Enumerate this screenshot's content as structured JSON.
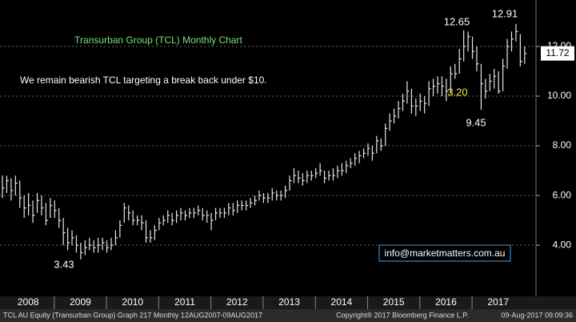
{
  "chart_data": {
    "type": "ohlc",
    "title": "Transurban Group (TCL) Monthly Chart",
    "subtitle": "We remain bearish TCL targeting a break back under $10.",
    "annotations": [
      "12.65",
      "12.91",
      "9.45",
      "3.43",
      "3.20"
    ],
    "contact": "info@marketmatters.com.au",
    "footer": [
      "TCL AU Equity (Transurban Group) Graph 217  Monthly 12AUG2007-09AUG2017",
      "Copyright® 2017 Bloomberg Finance L.P.",
      "09-Aug-2017 09:09:36"
    ],
    "categories": [
      null,
      null,
      null,
      null,
      null,
      "2008",
      null,
      null,
      null,
      null,
      null,
      null,
      null,
      null,
      null,
      null,
      null,
      "2009",
      null,
      null,
      null,
      null,
      null,
      null,
      null,
      null,
      null,
      null,
      null,
      "2010",
      null,
      null,
      null,
      null,
      null,
      null,
      null,
      null,
      null,
      null,
      null,
      "2011",
      null,
      null,
      null,
      null,
      null,
      null,
      null,
      null,
      null,
      null,
      null,
      "2012",
      null,
      null,
      null,
      null,
      null,
      null,
      null,
      null,
      null,
      null,
      null,
      "2013",
      null,
      null,
      null,
      null,
      null,
      null,
      null,
      null,
      null,
      null,
      null,
      "2014",
      null,
      null,
      null,
      null,
      null,
      null,
      null,
      null,
      null,
      null,
      null,
      "2015",
      null,
      null,
      null,
      null,
      null,
      null,
      null,
      null,
      null,
      null,
      null,
      "2016",
      null,
      null,
      null,
      null,
      null,
      null,
      null,
      null,
      null,
      null,
      null,
      "2017",
      null,
      null,
      null,
      null,
      null,
      null,
      null
    ],
    "high": [
      6.8,
      6.8,
      6.7,
      6.8,
      6.6,
      6.0,
      6.1,
      5.8,
      6.1,
      6.0,
      5.7,
      5.9,
      5.8,
      5.5,
      5.1,
      4.7,
      4.6,
      4.4,
      4.1,
      4.2,
      4.3,
      4.2,
      4.3,
      4.3,
      4.2,
      4.3,
      4.6,
      5.0,
      5.7,
      5.6,
      5.4,
      5.2,
      5.2,
      5.0,
      4.6,
      4.8,
      5.1,
      5.2,
      5.4,
      5.3,
      5.4,
      5.5,
      5.4,
      5.5,
      5.5,
      5.6,
      5.5,
      5.4,
      5.3,
      5.5,
      5.5,
      5.5,
      5.7,
      5.7,
      5.8,
      5.8,
      5.8,
      5.9,
      6.0,
      6.2,
      6.1,
      6.1,
      6.3,
      6.2,
      6.2,
      6.4,
      6.8,
      7.1,
      7.0,
      6.9,
      7.0,
      7.0,
      7.1,
      7.3,
      7.0,
      7.0,
      7.1,
      7.2,
      7.3,
      7.4,
      7.5,
      7.7,
      7.8,
      7.9,
      8.1,
      8.0,
      8.4,
      8.3,
      8.9,
      9.3,
      9.5,
      9.8,
      10.1,
      10.6,
      10.3,
      9.9,
      10.1,
      10.0,
      10.6,
      10.7,
      10.8,
      10.8,
      10.7,
      11.2,
      11.3,
      11.9,
      12.65,
      12.6,
      12.4,
      12.0,
      11.3,
      10.7,
      10.9,
      11.1,
      11.0,
      11.5,
      12.3,
      12.6,
      12.91,
      12.5,
      12.0
    ],
    "low": [
      5.9,
      6.1,
      5.8,
      6.0,
      5.5,
      5.1,
      5.2,
      4.9,
      5.3,
      5.2,
      4.8,
      5.1,
      5.1,
      4.7,
      4.0,
      3.8,
      4.0,
      3.7,
      3.43,
      3.6,
      3.8,
      3.7,
      3.7,
      3.8,
      3.7,
      3.8,
      4.0,
      4.3,
      4.9,
      5.0,
      4.8,
      4.8,
      4.6,
      4.1,
      4.1,
      4.2,
      4.6,
      4.8,
      4.9,
      4.8,
      4.9,
      5.0,
      5.0,
      5.1,
      5.1,
      5.2,
      5.0,
      4.9,
      4.6,
      5.0,
      5.1,
      5.1,
      5.2,
      5.2,
      5.3,
      5.4,
      5.4,
      5.5,
      5.6,
      5.8,
      5.7,
      5.7,
      5.8,
      5.8,
      5.8,
      5.9,
      6.2,
      6.5,
      6.5,
      6.4,
      6.5,
      6.6,
      6.7,
      6.8,
      6.5,
      6.6,
      6.6,
      6.7,
      6.8,
      6.9,
      7.1,
      7.2,
      7.3,
      7.5,
      7.6,
      7.4,
      7.7,
      7.8,
      8.0,
      8.6,
      8.9,
      9.1,
      9.4,
      9.7,
      9.3,
      9.2,
      9.4,
      9.3,
      9.6,
      10.0,
      10.1,
      10.0,
      9.8,
      10.1,
      10.7,
      10.9,
      11.4,
      11.8,
      11.5,
      11.0,
      9.45,
      9.9,
      10.2,
      10.3,
      10.1,
      10.2,
      11.1,
      11.8,
      12.2,
      11.2,
      11.3
    ],
    "close": [
      6.3,
      6.6,
      6.2,
      6.5,
      5.9,
      5.5,
      5.6,
      5.2,
      5.8,
      5.5,
      5.0,
      5.6,
      5.4,
      5.0,
      4.5,
      4.1,
      4.3,
      4.0,
      3.7,
      3.9,
      4.0,
      3.9,
      4.0,
      4.1,
      3.9,
      4.0,
      4.3,
      4.8,
      5.5,
      5.3,
      5.0,
      5.0,
      4.9,
      4.3,
      4.3,
      4.6,
      4.9,
      5.0,
      5.2,
      5.0,
      5.2,
      5.3,
      5.2,
      5.3,
      5.3,
      5.4,
      5.2,
      5.2,
      5.0,
      5.3,
      5.3,
      5.3,
      5.5,
      5.4,
      5.6,
      5.6,
      5.6,
      5.7,
      5.8,
      6.0,
      5.9,
      5.9,
      6.1,
      6.0,
      6.0,
      6.2,
      6.6,
      6.8,
      6.7,
      6.6,
      6.8,
      6.8,
      6.9,
      7.0,
      6.7,
      6.8,
      6.8,
      7.0,
      7.0,
      7.2,
      7.3,
      7.5,
      7.6,
      7.7,
      7.9,
      7.7,
      8.2,
      8.0,
      8.7,
      9.0,
      9.2,
      9.5,
      9.8,
      10.2,
      9.6,
      9.6,
      9.8,
      9.7,
      10.3,
      10.4,
      10.5,
      10.4,
      10.2,
      10.9,
      10.9,
      11.5,
      12.0,
      12.4,
      11.8,
      11.3,
      10.5,
      10.2,
      10.6,
      10.8,
      10.2,
      11.2,
      12.0,
      12.3,
      12.6,
      11.4,
      11.72
    ],
    "color": "#e8e8e8",
    "ylim": [
      1.94,
      13.87
    ],
    "yticks": [
      {
        "value": 4,
        "label": "4.00"
      },
      {
        "value": 6,
        "label": "6.00"
      },
      {
        "value": 8,
        "label": "8.00"
      },
      {
        "value": 10,
        "label": "10.00"
      },
      {
        "value": 12,
        "label": "12.00"
      }
    ],
    "grid": true
  }
}
